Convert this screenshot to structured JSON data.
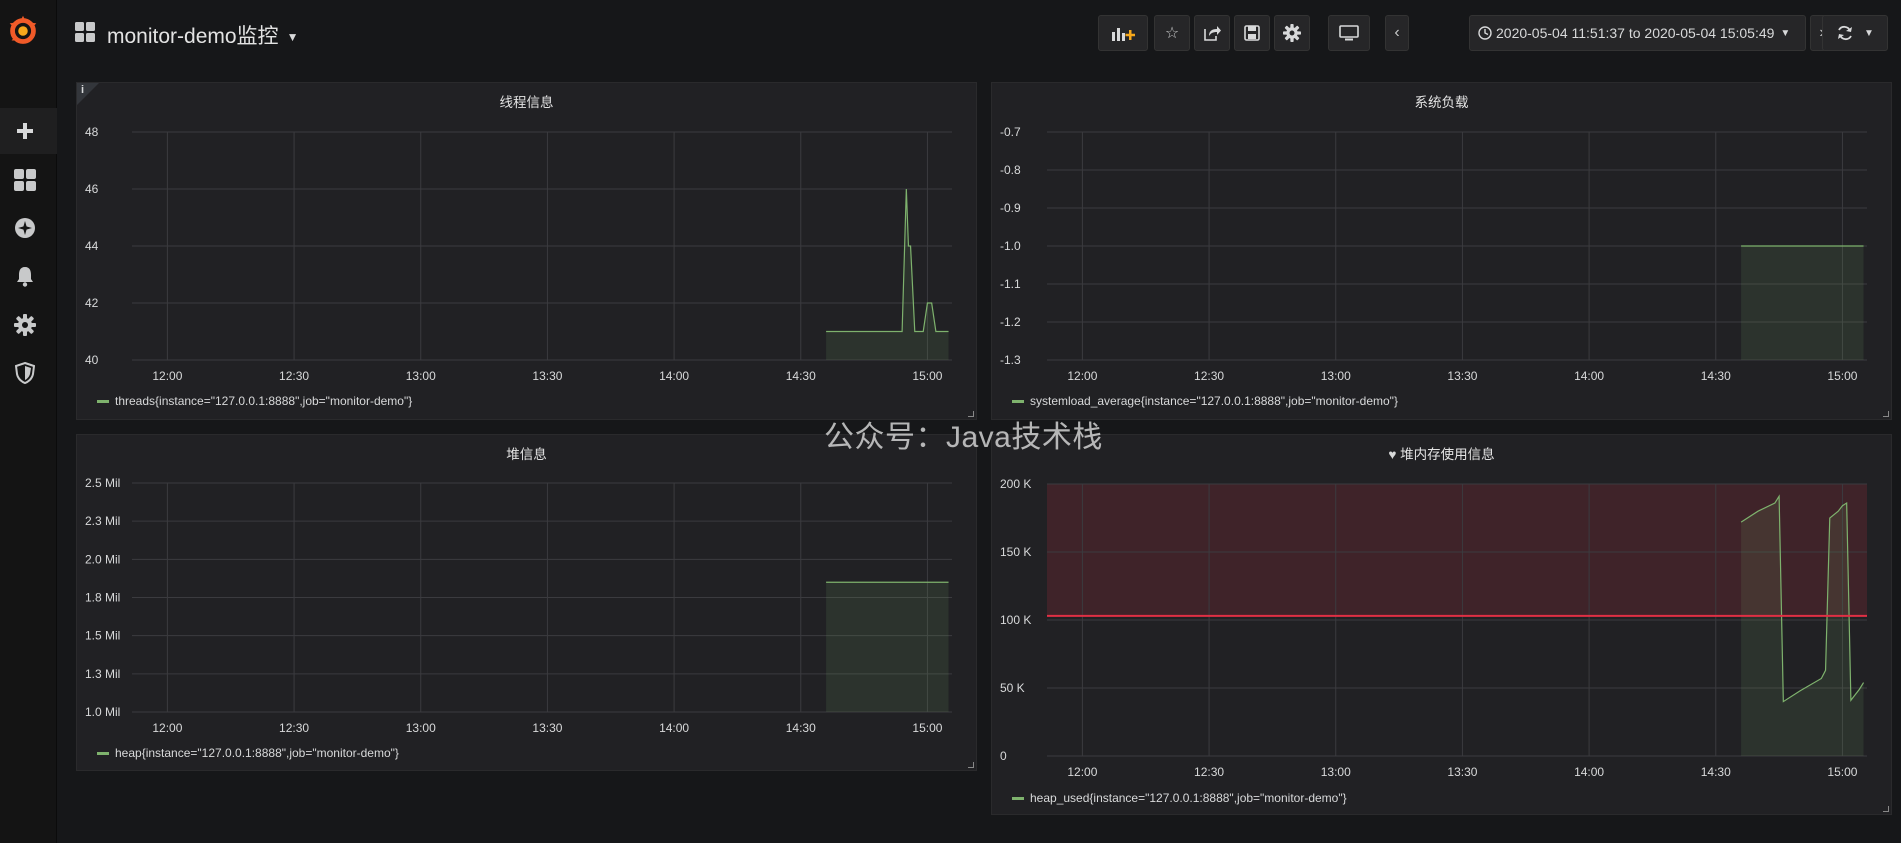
{
  "header": {
    "title": "monitor-demo监控",
    "time_range": "2020-05-04 11:51:37 to 2020-05-04 15:05:49"
  },
  "sidebar": {
    "items": [
      {
        "icon": "plus-icon"
      },
      {
        "icon": "dashboards-icon"
      },
      {
        "icon": "explore-compass-icon"
      },
      {
        "icon": "alerting-bell-icon"
      },
      {
        "icon": "configuration-gear-icon"
      },
      {
        "icon": "server-admin-shield-icon"
      }
    ]
  },
  "toolbar": {
    "buttons": [
      "add-panel-icon",
      "star-icon",
      "share-icon",
      "save-icon",
      "settings-gear-icon",
      "tv-mode-icon",
      "chevron-left-icon",
      "clock-icon",
      "chevron-right-icon",
      "zoom-out-icon",
      "refresh-icon"
    ]
  },
  "watermark": "公众号：Java技术栈",
  "colors": {
    "series": "#7eb26d",
    "threshold": "#e02f44",
    "grid": "#3b3b3f",
    "panel_bg": "#212124"
  },
  "panels": {
    "threads": {
      "title": "线程信息",
      "legend": "threads{instance=\"127.0.0.1:8888\",job=\"monitor-demo\"}",
      "yticks": [
        "48",
        "46",
        "44",
        "42",
        "40"
      ],
      "xticks": [
        "12:00",
        "12:30",
        "13:00",
        "13:30",
        "14:00",
        "14:30",
        "15:00"
      ]
    },
    "sysload": {
      "title": "系统负载",
      "legend": "systemload_average{instance=\"127.0.0.1:8888\",job=\"monitor-demo\"}",
      "yticks": [
        "-0.7",
        "-0.8",
        "-0.9",
        "-1.0",
        "-1.1",
        "-1.2",
        "-1.3"
      ],
      "xticks": [
        "12:00",
        "12:30",
        "13:00",
        "13:30",
        "14:00",
        "14:30",
        "15:00"
      ]
    },
    "heap": {
      "title": "堆信息",
      "legend": "heap{instance=\"127.0.0.1:8888\",job=\"monitor-demo\"}",
      "yticks": [
        "2.5 Mil",
        "2.3 Mil",
        "2.0 Mil",
        "1.8 Mil",
        "1.5 Mil",
        "1.3 Mil",
        "1.0 Mil"
      ],
      "xticks": [
        "12:00",
        "12:30",
        "13:00",
        "13:30",
        "14:00",
        "14:30",
        "15:00"
      ]
    },
    "heap_used": {
      "title": "堆内存使用信息",
      "title_icon": "heart-icon",
      "legend": "heap_used{instance=\"127.0.0.1:8888\",job=\"monitor-demo\"}",
      "yticks": [
        "200 K",
        "150 K",
        "100 K",
        "50 K",
        "0"
      ],
      "xticks": [
        "12:00",
        "12:30",
        "13:00",
        "13:30",
        "14:00",
        "14:30",
        "15:00"
      ]
    }
  },
  "chart_data": [
    {
      "type": "line",
      "title": "线程信息",
      "x_range": [
        "11:51:37",
        "15:05:49"
      ],
      "ylim": [
        40,
        48
      ],
      "series": [
        {
          "name": "threads{instance=\"127.0.0.1:8888\",job=\"monitor-demo\"}",
          "fill": true,
          "points": [
            [
              "14:36",
              41
            ],
            [
              "14:54",
              41
            ],
            [
              "14:55",
              46
            ],
            [
              "14:55:30",
              44
            ],
            [
              "14:56",
              44
            ],
            [
              "14:57",
              41
            ],
            [
              "14:59",
              41
            ],
            [
              "15:00",
              42
            ],
            [
              "15:01",
              42
            ],
            [
              "15:02",
              41
            ],
            [
              "15:05",
              41
            ]
          ]
        }
      ]
    },
    {
      "type": "line",
      "title": "系统负载",
      "x_range": [
        "11:51:37",
        "15:05:49"
      ],
      "ylim": [
        -1.3,
        -0.7
      ],
      "series": [
        {
          "name": "systemload_average{instance=\"127.0.0.1:8888\",job=\"monitor-demo\"}",
          "fill": true,
          "points": [
            [
              "14:36",
              -1.0
            ],
            [
              "15:05",
              -1.0
            ]
          ]
        }
      ]
    },
    {
      "type": "line",
      "title": "堆信息",
      "x_range": [
        "11:51:37",
        "15:05:49"
      ],
      "ylim": [
        1000000,
        2500000
      ],
      "series": [
        {
          "name": "heap{instance=\"127.0.0.1:8888\",job=\"monitor-demo\"}",
          "fill": true,
          "points": [
            [
              "14:36",
              1850000
            ],
            [
              "15:05",
              1850000
            ]
          ]
        }
      ]
    },
    {
      "type": "line",
      "title": "堆内存使用信息",
      "x_range": [
        "11:51:37",
        "15:05:49"
      ],
      "ylim": [
        0,
        200000
      ],
      "threshold": 103000,
      "series": [
        {
          "name": "heap_used{instance=\"127.0.0.1:8888\",job=\"monitor-demo\"}",
          "fill": true,
          "points": [
            [
              "14:36",
              172000
            ],
            [
              "14:40",
              180000
            ],
            [
              "14:44",
              186000
            ],
            [
              "14:45",
              191000
            ],
            [
              "14:46",
              40000
            ],
            [
              "14:50",
              48000
            ],
            [
              "14:55",
              57000
            ],
            [
              "14:56",
              63000
            ],
            [
              "14:57",
              175000
            ],
            [
              "14:59",
              180000
            ],
            [
              "15:00",
              184000
            ],
            [
              "15:01",
              186000
            ],
            [
              "15:02",
              41000
            ],
            [
              "15:04",
              49000
            ],
            [
              "15:05",
              54000
            ]
          ]
        }
      ]
    }
  ]
}
